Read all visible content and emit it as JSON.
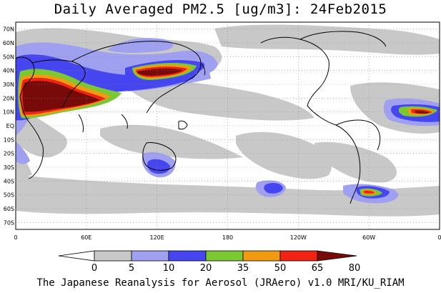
{
  "title": "Daily Averaged PM2.5 [ug/m3]: 24Feb2015",
  "footer": "The Japanese Reanalysis for Aerosol (JRAero) v1.0 MRI/KU_RIAM",
  "map": {
    "lat_labels": [
      "70N",
      "60N",
      "50N",
      "40N",
      "30N",
      "20N",
      "10N",
      "EQ",
      "10S",
      "20S",
      "30S",
      "40S",
      "50S",
      "60S",
      "70S"
    ],
    "lon_labels": [
      "0",
      "60E",
      "120E",
      "180",
      "120W",
      "60W",
      "0"
    ],
    "grid": "dotted"
  },
  "legend": {
    "ticks": [
      "0",
      "5",
      "10",
      "20",
      "35",
      "50",
      "65",
      "80"
    ],
    "colors": [
      "#ffffff",
      "#c8c8c8",
      "#a0a0f0",
      "#4646f0",
      "#7ac832",
      "#f09a14",
      "#f02314",
      "#780a0a"
    ]
  }
}
